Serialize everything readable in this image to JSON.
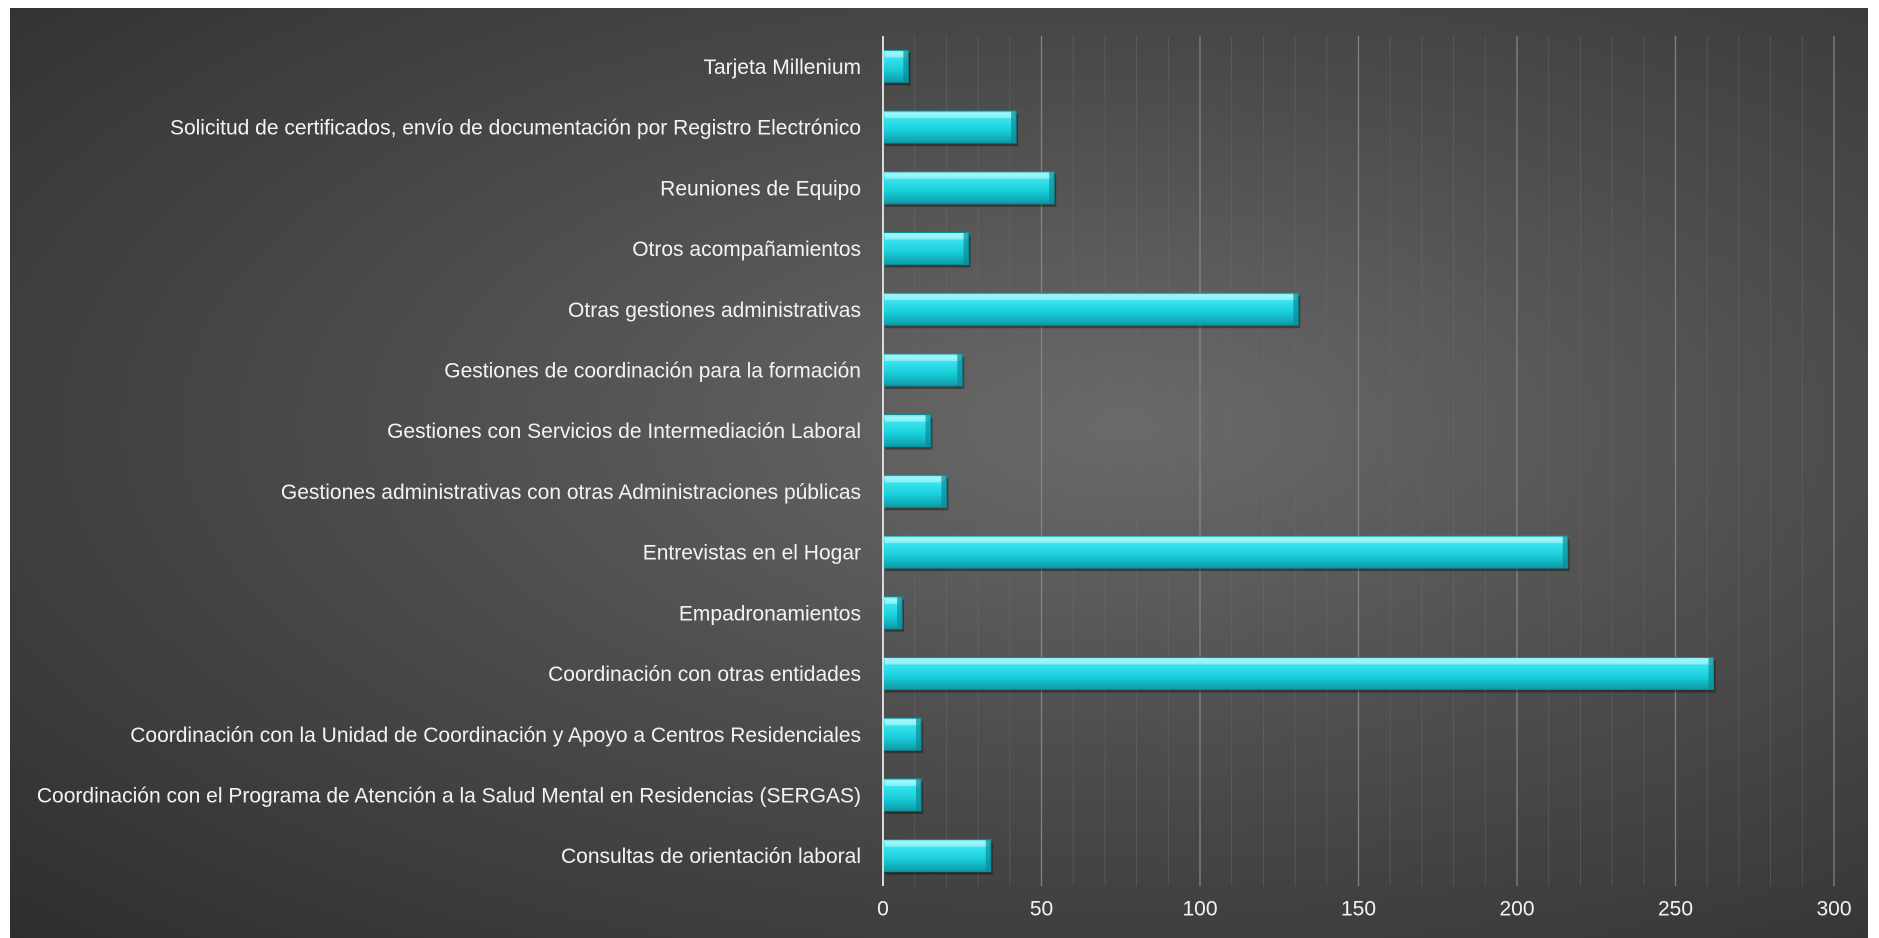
{
  "chart_data": {
    "type": "bar",
    "orientation": "horizontal",
    "categories": [
      "Tarjeta Millenium",
      "Solicitud de certificados, envío de documentación por Registro Electrónico",
      "Reuniones de Equipo",
      "Otros acompañamientos",
      "Otras gestiones administrativas",
      "Gestiones de coordinación para la formación",
      "Gestiones con Servicios de Intermediación Laboral",
      "Gestiones administrativas con otras Administraciones públicas",
      "Entrevistas en el Hogar",
      "Empadronamientos",
      "Coordinación con otras entidades",
      "Coordinación con la Unidad de Coordinación y Apoyo a Centros Residenciales",
      "Coordinación con el Programa de Atención a la Salud Mental en Residencias (SERGAS)",
      "Consultas de orientación laboral"
    ],
    "values": [
      8,
      42,
      54,
      27,
      131,
      25,
      15,
      20,
      216,
      6,
      262,
      12,
      12,
      34
    ],
    "xlim": [
      0,
      300
    ],
    "xticks": [
      "0",
      "50",
      "100",
      "150",
      "200",
      "250",
      "300"
    ],
    "title": "",
    "xlabel": "",
    "ylabel": "",
    "grid": true,
    "legend": "none",
    "bar_color": "#22d8e4",
    "background": "#4d4d4d"
  }
}
